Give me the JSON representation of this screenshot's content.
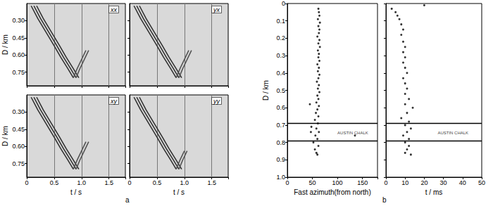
{
  "chart_data": [
    {
      "type": "line",
      "panel": "a",
      "title": "xx",
      "ylabel": "D / km",
      "tick_labels": "y",
      "grid": "x",
      "xlim": [
        0,
        1.8
      ],
      "xticks": [
        0,
        0.5,
        {
          "value": 1,
          "label": "1.0"
        },
        1.5
      ],
      "ylim": [
        0.87,
        0.15
      ],
      "yticks": [
        {
          "value": 0.3,
          "label": "0.30"
        },
        {
          "value": 0.45,
          "label": "0.45"
        },
        {
          "value": 0.6,
          "label": "0.60"
        },
        {
          "value": 0.75,
          "label": "0.75"
        }
      ],
      "series": [
        {
          "color": "#333333",
          "x": [
            0.08,
            0.2,
            0.35,
            0.5,
            0.62,
            0.75,
            0.85
          ],
          "values": [
            0.17,
            0.28,
            0.4,
            0.52,
            0.62,
            0.72,
            0.8
          ]
        },
        {
          "color": "#333333",
          "x": [
            0.13,
            0.25,
            0.4,
            0.55,
            0.67,
            0.8,
            0.9
          ],
          "values": [
            0.17,
            0.28,
            0.4,
            0.52,
            0.62,
            0.72,
            0.8
          ]
        },
        {
          "color": "#333333",
          "x": [
            0.18,
            0.3,
            0.45,
            0.6,
            0.72,
            0.85,
            0.95
          ],
          "values": [
            0.17,
            0.28,
            0.4,
            0.52,
            0.62,
            0.72,
            0.8
          ]
        },
        {
          "color": "#555555",
          "x": [
            0.85,
            0.92,
            1.0,
            1.08
          ],
          "values": [
            0.8,
            0.72,
            0.64,
            0.56
          ]
        },
        {
          "color": "#555555",
          "x": [
            0.9,
            0.97,
            1.05,
            1.13
          ],
          "values": [
            0.8,
            0.72,
            0.64,
            0.56
          ]
        }
      ]
    },
    {
      "type": "line",
      "panel": "a",
      "title": "yx",
      "tick_labels": false,
      "grid": "x",
      "xlim": [
        0,
        1.8
      ],
      "xticks": [
        0,
        0.5,
        {
          "value": 1,
          "label": "1.0"
        },
        1.5
      ],
      "ylim": [
        0.87,
        0.15
      ],
      "yticks": [
        {
          "value": 0.3,
          "label": "0.30"
        },
        {
          "value": 0.45,
          "label": "0.45"
        },
        {
          "value": 0.6,
          "label": "0.60"
        },
        {
          "value": 0.75,
          "label": "0.75"
        }
      ],
      "series": [
        {
          "color": "#333333",
          "x": [
            0.08,
            0.2,
            0.35,
            0.5,
            0.62,
            0.75,
            0.85
          ],
          "values": [
            0.17,
            0.28,
            0.4,
            0.52,
            0.62,
            0.72,
            0.8
          ]
        },
        {
          "color": "#333333",
          "x": [
            0.13,
            0.25,
            0.4,
            0.55,
            0.67,
            0.8,
            0.9
          ],
          "values": [
            0.17,
            0.28,
            0.4,
            0.52,
            0.62,
            0.72,
            0.8
          ]
        },
        {
          "color": "#333333",
          "x": [
            0.18,
            0.3,
            0.45,
            0.6,
            0.72,
            0.85,
            0.95
          ],
          "values": [
            0.17,
            0.28,
            0.4,
            0.52,
            0.62,
            0.72,
            0.8
          ]
        },
        {
          "color": "#555555",
          "x": [
            0.85,
            0.92,
            1.0,
            1.08
          ],
          "values": [
            0.8,
            0.72,
            0.64,
            0.56
          ]
        },
        {
          "color": "#555555",
          "x": [
            0.9,
            0.97,
            1.05,
            1.13
          ],
          "values": [
            0.8,
            0.72,
            0.64,
            0.56
          ]
        }
      ]
    },
    {
      "type": "line",
      "panel": "a",
      "title": "xy",
      "xlabel": "t / s",
      "ylabel": "D / km",
      "tick_labels": true,
      "grid": "x",
      "xlim": [
        0,
        1.8
      ],
      "xticks": [
        0,
        0.5,
        {
          "value": 1,
          "label": "1.0"
        },
        1.5
      ],
      "ylim": [
        0.87,
        0.15
      ],
      "yticks": [
        {
          "value": 0.3,
          "label": "0.30"
        },
        {
          "value": 0.45,
          "label": "0.45"
        },
        {
          "value": 0.6,
          "label": "0.60"
        },
        {
          "value": 0.75,
          "label": "0.75"
        }
      ],
      "series": [
        {
          "color": "#333333",
          "x": [
            0.08,
            0.2,
            0.35,
            0.5,
            0.62,
            0.75,
            0.85
          ],
          "values": [
            0.17,
            0.28,
            0.4,
            0.52,
            0.62,
            0.72,
            0.8
          ]
        },
        {
          "color": "#333333",
          "x": [
            0.13,
            0.25,
            0.4,
            0.55,
            0.67,
            0.8,
            0.9
          ],
          "values": [
            0.17,
            0.28,
            0.4,
            0.52,
            0.62,
            0.72,
            0.8
          ]
        },
        {
          "color": "#333333",
          "x": [
            0.18,
            0.3,
            0.45,
            0.6,
            0.72,
            0.85,
            0.95
          ],
          "values": [
            0.17,
            0.28,
            0.4,
            0.52,
            0.62,
            0.72,
            0.8
          ]
        },
        {
          "color": "#555555",
          "x": [
            0.85,
            0.92,
            1.0,
            1.08
          ],
          "values": [
            0.8,
            0.72,
            0.64,
            0.56
          ]
        },
        {
          "color": "#555555",
          "x": [
            0.9,
            0.97,
            1.05,
            1.13
          ],
          "values": [
            0.8,
            0.72,
            0.64,
            0.56
          ]
        }
      ]
    },
    {
      "type": "line",
      "panel": "a",
      "title": "yy",
      "xlabel": "t / s",
      "tick_labels": "x",
      "grid": "x",
      "xlim": [
        0,
        1.8
      ],
      "xticks": [
        0,
        0.5,
        {
          "value": 1,
          "label": "1.0"
        },
        1.5
      ],
      "ylim": [
        0.87,
        0.15
      ],
      "yticks": [
        {
          "value": 0.3,
          "label": "0.30"
        },
        {
          "value": 0.45,
          "label": "0.45"
        },
        {
          "value": 0.6,
          "label": "0.60"
        },
        {
          "value": 0.75,
          "label": "0.75"
        }
      ],
      "series": [
        {
          "color": "#333333",
          "x": [
            0.08,
            0.2,
            0.35,
            0.5,
            0.62,
            0.75,
            0.85
          ],
          "values": [
            0.17,
            0.28,
            0.4,
            0.52,
            0.62,
            0.72,
            0.8
          ]
        },
        {
          "color": "#333333",
          "x": [
            0.13,
            0.25,
            0.4,
            0.55,
            0.67,
            0.8,
            0.9
          ],
          "values": [
            0.17,
            0.28,
            0.4,
            0.52,
            0.62,
            0.72,
            0.8
          ]
        },
        {
          "color": "#333333",
          "x": [
            0.18,
            0.3,
            0.45,
            0.6,
            0.72,
            0.85,
            0.95
          ],
          "values": [
            0.17,
            0.28,
            0.4,
            0.52,
            0.62,
            0.72,
            0.8
          ]
        },
        {
          "color": "#555555",
          "x": [
            0.85,
            0.92,
            1.0
          ],
          "values": [
            0.8,
            0.72,
            0.64
          ]
        },
        {
          "color": "#555555",
          "x": [
            0.9,
            0.97,
            1.05
          ],
          "values": [
            0.8,
            0.72,
            0.64
          ]
        }
      ]
    },
    {
      "type": "scatter",
      "panel": "b",
      "xlabel": "Fast azimuth(from north)",
      "ylabel": "D / km",
      "tick_labels": true,
      "grid": false,
      "xlim": [
        0,
        180
      ],
      "xticks": [
        0,
        50,
        100,
        150
      ],
      "ylim": [
        1,
        0
      ],
      "yticks": [
        0,
        0.1,
        0.2,
        0.3,
        0.4,
        0.5,
        0.6,
        0.7,
        0.8,
        0.9,
        {
          "value": 1,
          "label": "1.0"
        }
      ],
      "hlines": [
        0.685,
        0.785
      ],
      "annotations": [
        {
          "text": "AUSTIN CHALK",
          "x": 100,
          "y": 0.745
        }
      ],
      "series": [
        {
          "color": "#000000",
          "marker": "circle",
          "x": [
            62,
            63,
            64,
            61,
            65,
            62,
            64,
            63,
            60,
            64,
            62,
            65,
            61,
            63,
            62,
            64,
            60,
            63,
            61,
            64,
            62,
            59,
            63,
            61,
            64,
            60,
            62,
            58,
            45,
            63,
            60,
            57,
            62,
            55,
            61,
            48,
            58,
            63,
            47,
            135,
            56,
            60,
            52,
            62,
            55,
            58,
            60
          ],
          "values": [
            0.03,
            0.05,
            0.07,
            0.09,
            0.11,
            0.13,
            0.15,
            0.17,
            0.19,
            0.21,
            0.23,
            0.25,
            0.27,
            0.29,
            0.31,
            0.33,
            0.35,
            0.37,
            0.39,
            0.41,
            0.43,
            0.45,
            0.47,
            0.49,
            0.51,
            0.53,
            0.55,
            0.57,
            0.58,
            0.59,
            0.61,
            0.63,
            0.65,
            0.67,
            0.69,
            0.71,
            0.72,
            0.74,
            0.74,
            0.76,
            0.76,
            0.78,
            0.8,
            0.82,
            0.84,
            0.86,
            0.87
          ]
        }
      ]
    },
    {
      "type": "scatter",
      "panel": "b",
      "xlabel": "t / ms",
      "tick_labels": "x",
      "grid": false,
      "xlim": [
        0,
        50
      ],
      "xticks": [
        0,
        10,
        20,
        30,
        40,
        50
      ],
      "ylim": [
        1,
        0
      ],
      "yticks": [
        0,
        0.1,
        0.2,
        0.3,
        0.4,
        0.5,
        0.6,
        0.7,
        0.8,
        0.9,
        {
          "value": 1,
          "label": "1.0"
        }
      ],
      "hlines": [
        0.685,
        0.785
      ],
      "annotations": [
        {
          "text": "AUSTIN CHALK",
          "x": 27,
          "y": 0.745
        }
      ],
      "series": [
        {
          "color": "#000000",
          "marker": "circle",
          "x": [
            3,
            5,
            6,
            7,
            20,
            8,
            9,
            8,
            9,
            10,
            9,
            10,
            9,
            10,
            11,
            9,
            10,
            11,
            10,
            12,
            10,
            14,
            11,
            8,
            12,
            10,
            13,
            11,
            9,
            12,
            10,
            12,
            11,
            10,
            13
          ],
          "values": [
            0.03,
            0.05,
            0.07,
            0.09,
            0.01,
            0.12,
            0.15,
            0.18,
            0.22,
            0.25,
            0.28,
            0.31,
            0.34,
            0.37,
            0.4,
            0.43,
            0.46,
            0.49,
            0.52,
            0.55,
            0.58,
            0.6,
            0.63,
            0.66,
            0.68,
            0.7,
            0.72,
            0.74,
            0.76,
            0.78,
            0.8,
            0.82,
            0.84,
            0.86,
            0.87
          ]
        }
      ]
    }
  ],
  "panel_labels": [
    {
      "label": "a"
    },
    {
      "label": "b"
    }
  ]
}
